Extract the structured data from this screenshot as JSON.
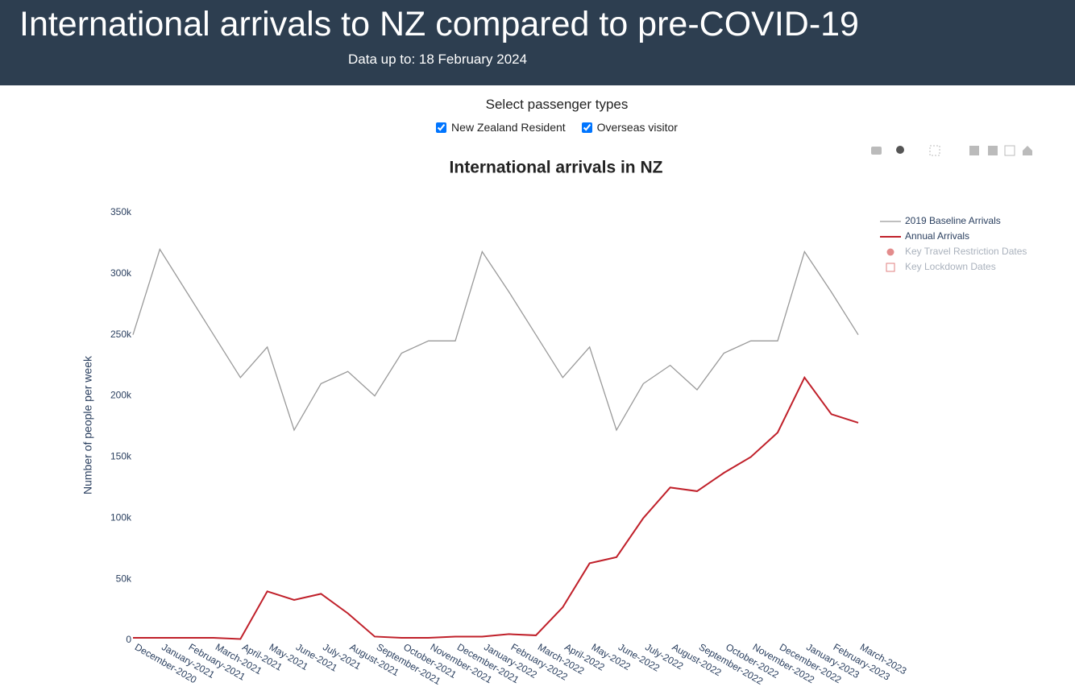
{
  "header": {
    "title": "International arrivals to NZ compared to pre-COVID-19",
    "subtitle": "Data up to: 18 February 2024"
  },
  "controls": {
    "heading": "Select passenger types",
    "options": [
      "New Zealand Resident",
      "Overseas visitor"
    ]
  },
  "chart_data": {
    "type": "line",
    "title": "International arrivals in NZ",
    "y_label": "Number of people per week",
    "categories": [
      "December-2020",
      "January-2021",
      "February-2021",
      "March-2021",
      "April-2021",
      "May-2021",
      "June-2021",
      "July-2021",
      "August-2021",
      "September-2021",
      "October-2021",
      "November-2021",
      "December-2021",
      "January-2022",
      "February-2022",
      "March-2022",
      "April-2022",
      "May-2022",
      "June-2022",
      "July-2022",
      "August-2022",
      "September-2022",
      "October-2022",
      "November-2022",
      "December-2022",
      "January-2023",
      "February-2023",
      "March-2023"
    ],
    "series": [
      {
        "name": "2019 Baseline Arrivals",
        "color": "#999999",
        "values": [
          250000,
          320000,
          285000,
          250000,
          215000,
          240000,
          172000,
          210000,
          220000,
          200000,
          235000,
          245000,
          245000,
          318000,
          285000,
          250000,
          215000,
          240000,
          172000,
          210000,
          225000,
          205000,
          235000,
          245000,
          245000,
          318000,
          285000,
          250000
        ]
      },
      {
        "name": "Annual Arrivals",
        "color": "#c0202a",
        "values": [
          2000,
          2000,
          2000,
          2000,
          1000,
          40000,
          33000,
          38000,
          22000,
          3000,
          2000,
          2000,
          3000,
          3000,
          5000,
          4000,
          27000,
          63000,
          68000,
          100000,
          125000,
          122000,
          137000,
          150000,
          170000,
          215000,
          185000,
          178000
        ]
      }
    ],
    "hidden_traces": [
      {
        "name": "Key Travel Restriction Dates",
        "color": "#e08080"
      },
      {
        "name": "Key Lockdown Dates",
        "color": "#e08080"
      }
    ],
    "ylim": [
      0,
      350000
    ],
    "yticks": [
      0,
      {
        "value": 50000,
        "label": "50k"
      },
      {
        "value": 100000,
        "label": "100k"
      },
      {
        "value": 150000,
        "label": "150k"
      },
      {
        "value": 200000,
        "label": "200k"
      },
      {
        "value": 250000,
        "label": "250k"
      },
      {
        "value": 300000,
        "label": "300k"
      },
      {
        "value": 350000,
        "label": "350k"
      }
    ],
    "grid": false
  }
}
